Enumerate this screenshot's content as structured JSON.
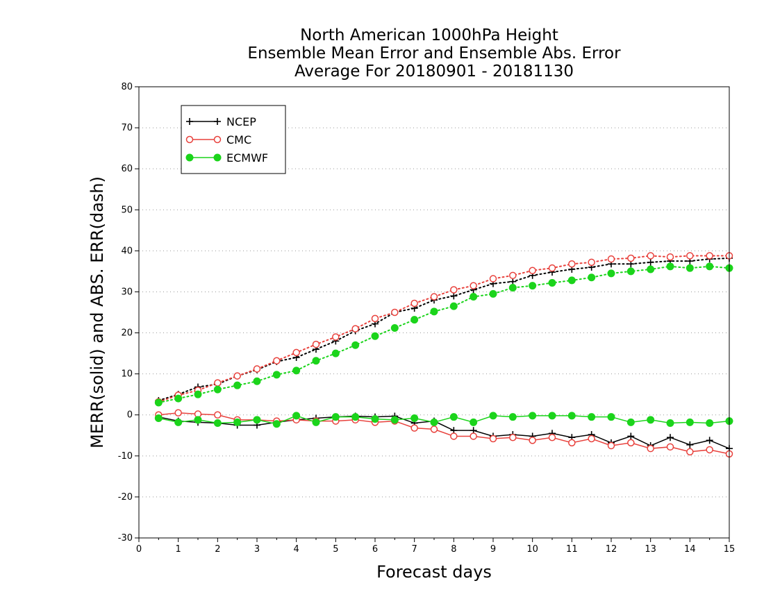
{
  "chart_data": {
    "type": "line",
    "title_lines": [
      "North American 1000hPa Height",
      "Ensemble Mean Error and Ensemble Abs. Error",
      "Average For 20180901 - 20181130"
    ],
    "xlabel": "Forecast days",
    "ylabel": "MERR(solid) and ABS. ERR(dash)",
    "xlim": [
      0,
      15
    ],
    "ylim": [
      -30,
      80
    ],
    "xticks": [
      0,
      1,
      2,
      3,
      4,
      5,
      6,
      7,
      8,
      9,
      10,
      11,
      12,
      13,
      14,
      15
    ],
    "yticks": [
      -30,
      -20,
      -10,
      0,
      10,
      20,
      30,
      40,
      50,
      60,
      70,
      80
    ],
    "grid": "horizontal dotted",
    "legend_position": "top-left",
    "x": [
      0.5,
      1,
      1.5,
      2,
      2.5,
      3,
      3.5,
      4,
      4.5,
      5,
      5.5,
      6,
      6.5,
      7,
      7.5,
      8,
      8.5,
      9,
      9.5,
      10,
      10.5,
      11,
      11.5,
      12,
      12.5,
      13,
      13.5,
      14,
      14.5,
      15
    ],
    "series": [
      {
        "name": "NCEP",
        "color": "#000000",
        "marker": "plus",
        "merr": [
          -0.5,
          -1.5,
          -1.8,
          -2,
          -2.5,
          -2.5,
          -1.8,
          -1.2,
          -0.8,
          -0.5,
          -0.3,
          -0.5,
          -0.3,
          -2,
          -1.5,
          -3.8,
          -3.8,
          -5.2,
          -4.8,
          -5.2,
          -4.5,
          -5.5,
          -4.8,
          -6.8,
          -5.2,
          -7.5,
          -5.5,
          -7.3,
          -6.2,
          -8.2
        ],
        "abs_err": [
          3.5,
          5,
          6.8,
          7.5,
          9.5,
          11,
          13,
          14,
          16,
          18,
          20.5,
          22.2,
          25,
          26,
          28,
          29,
          30.5,
          32,
          32.5,
          34,
          34.8,
          35.5,
          36,
          36.8,
          36.8,
          37.2,
          37.5,
          37.5,
          38,
          38.2
        ]
      },
      {
        "name": "CMC",
        "color": "#e8413c",
        "marker": "open-circle",
        "merr": [
          0,
          0.5,
          0.2,
          0,
          -1.2,
          -1.2,
          -1.5,
          -1.2,
          -1.5,
          -1.5,
          -1.2,
          -1.8,
          -1.5,
          -3.2,
          -3.5,
          -5.2,
          -5.2,
          -5.8,
          -5.5,
          -6.2,
          -5.5,
          -6.8,
          -5.8,
          -7.5,
          -6.8,
          -8.2,
          -7.8,
          -9,
          -8.5,
          -9.5
        ],
        "abs_err": [
          3.2,
          4.8,
          6,
          7.8,
          9.5,
          11.2,
          13.2,
          15.2,
          17.2,
          19,
          21,
          23.5,
          25,
          27.2,
          28.8,
          30.5,
          31.5,
          33.2,
          34,
          35.2,
          35.8,
          36.8,
          37.2,
          38,
          38.2,
          38.8,
          38.5,
          38.8,
          38.8,
          38.8
        ]
      },
      {
        "name": "ECMWF",
        "color": "#1bd41b",
        "marker": "filled-circle",
        "merr": [
          -0.8,
          -1.8,
          -1.2,
          -2,
          -1.8,
          -1.2,
          -2.2,
          -0.2,
          -1.8,
          -0.5,
          -0.5,
          -1,
          -1.2,
          -0.8,
          -1.8,
          -0.5,
          -1.8,
          -0.2,
          -0.5,
          -0.2,
          -0.2,
          -0.2,
          -0.5,
          -0.5,
          -1.8,
          -1.2,
          -2,
          -1.8,
          -2,
          -1.5
        ],
        "abs_err": [
          3,
          4,
          5,
          6.2,
          7.2,
          8.2,
          9.8,
          10.8,
          13.2,
          15,
          17,
          19.2,
          21.2,
          23.2,
          25.2,
          26.5,
          28.8,
          29.5,
          31,
          31.5,
          32.2,
          32.8,
          33.5,
          34.5,
          35,
          35.5,
          36.2,
          35.8,
          36.2,
          35.8
        ]
      }
    ]
  }
}
